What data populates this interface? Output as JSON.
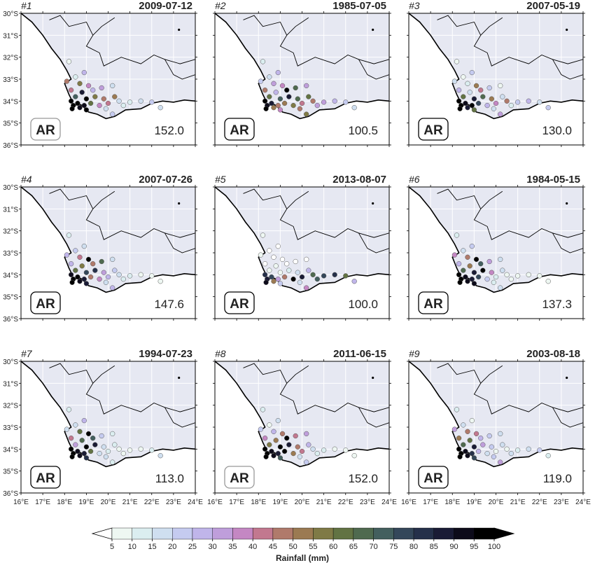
{
  "figure": {
    "panels": [
      {
        "index": "#1",
        "date": "2009-07-12",
        "ar_label": "AR",
        "ar_active": false,
        "total": "152.0"
      },
      {
        "index": "#2",
        "date": "1985-07-05",
        "ar_label": "AR",
        "ar_active": true,
        "total": "100.5"
      },
      {
        "index": "#3",
        "date": "2007-05-19",
        "ar_label": "AR",
        "ar_active": true,
        "total": "130.0"
      },
      {
        "index": "#4",
        "date": "2007-07-26",
        "ar_label": "AR",
        "ar_active": true,
        "total": "147.6"
      },
      {
        "index": "#5",
        "date": "2013-08-07",
        "ar_label": "AR",
        "ar_active": true,
        "total": "100.0"
      },
      {
        "index": "#6",
        "date": "1984-05-15",
        "ar_label": "AR",
        "ar_active": true,
        "total": "137.3"
      },
      {
        "index": "#7",
        "date": "1994-07-23",
        "ar_label": "AR",
        "ar_active": true,
        "total": "113.0"
      },
      {
        "index": "#8",
        "date": "2011-06-15",
        "ar_label": "AR",
        "ar_active": false,
        "total": "152.0"
      },
      {
        "index": "#9",
        "date": "2003-08-18",
        "ar_label": "AR",
        "ar_active": true,
        "total": "119.0"
      }
    ],
    "lat_labels": [
      "30°S",
      "31°S",
      "32°S",
      "33°S",
      "34°S",
      "35°S",
      "36°S"
    ],
    "lon_labels": [
      "16°E",
      "17°E",
      "18°E",
      "19°E",
      "20°E",
      "21°E",
      "22°E",
      "23°E",
      "24°E"
    ],
    "colorbar": {
      "title": "Rainfall (mm)",
      "ticks": [
        "5",
        "10",
        "15",
        "20",
        "25",
        "30",
        "35",
        "40",
        "45",
        "50",
        "55",
        "60",
        "65",
        "70",
        "75",
        "80",
        "85",
        "90",
        "95",
        "100"
      ],
      "colors": [
        "#ffffff",
        "#eef7f2",
        "#dbeef0",
        "#cfdff0",
        "#c5cbf0",
        "#c0b5ea",
        "#bf9edb",
        "#c487c3",
        "#c2788f",
        "#b07a6b",
        "#9b7a52",
        "#7f7a46",
        "#627343",
        "#4f6a4f",
        "#435f5e",
        "#34475a",
        "#25304a",
        "#1a1b35",
        "#0d0b1a",
        "#000000"
      ]
    },
    "colors": {
      "ocean": "#ffffff",
      "land": "#e6e8f2",
      "grid": "#ffffff",
      "coast": "#000000",
      "date_text": "#888888",
      "index_text": "#888888",
      "ar_inactive": "#999999",
      "ar_active": "#000000"
    }
  }
}
